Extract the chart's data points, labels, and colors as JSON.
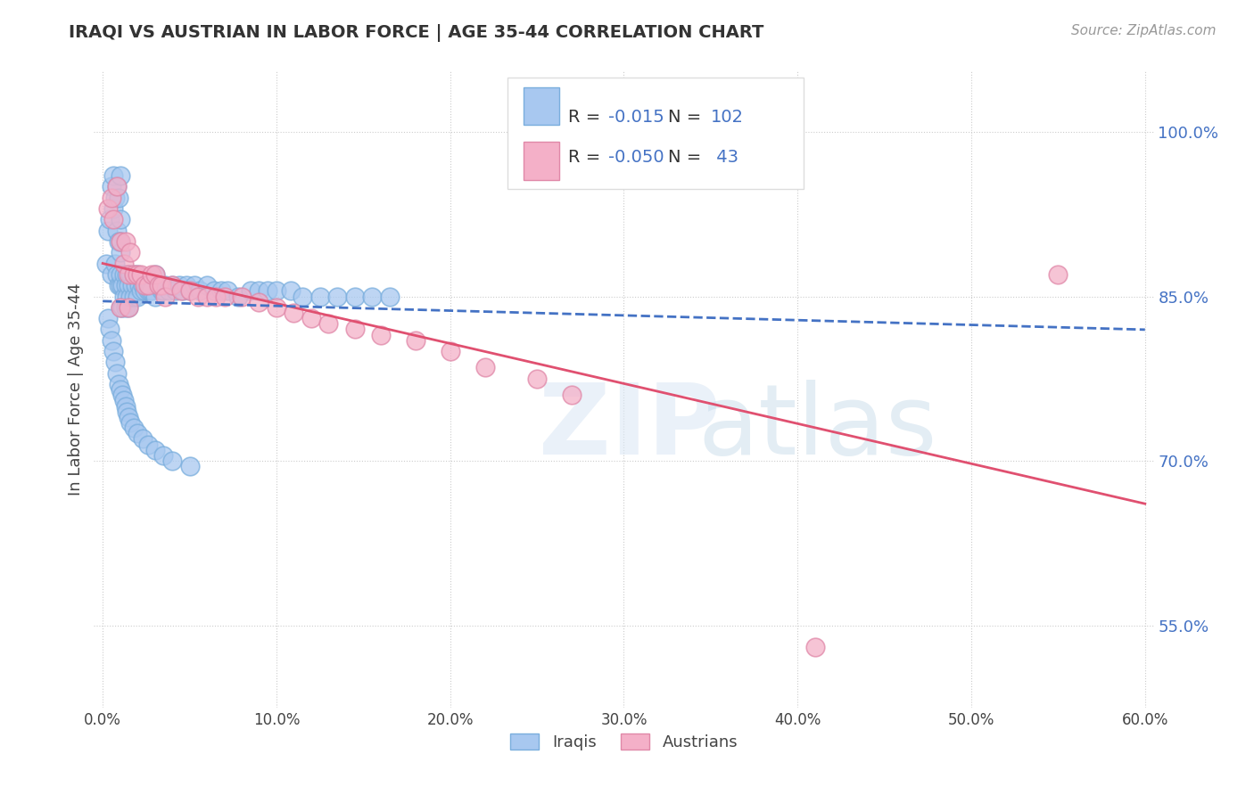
{
  "title": "IRAQI VS AUSTRIAN IN LABOR FORCE | AGE 35-44 CORRELATION CHART",
  "source": "Source: ZipAtlas.com",
  "ylabel": "In Labor Force | Age 35-44",
  "xlim": [
    -0.005,
    0.605
  ],
  "ylim": [
    0.475,
    1.055
  ],
  "xtick_labels": [
    "0.0%",
    "10.0%",
    "20.0%",
    "30.0%",
    "40.0%",
    "50.0%",
    "60.0%"
  ],
  "xtick_values": [
    0.0,
    0.1,
    0.2,
    0.3,
    0.4,
    0.5,
    0.6
  ],
  "ytick_labels": [
    "55.0%",
    "70.0%",
    "85.0%",
    "100.0%"
  ],
  "ytick_values": [
    0.55,
    0.7,
    0.85,
    1.0
  ],
  "iraqis_R": -0.015,
  "iraqis_N": 102,
  "austrians_R": -0.05,
  "austrians_N": 43,
  "iraqis_color": "#a8c8f0",
  "iraqis_edge_color": "#7aaedd",
  "austrians_color": "#f4b0c8",
  "austrians_edge_color": "#e088a8",
  "iraqis_line_color": "#4472c4",
  "austrians_line_color": "#e05070",
  "background_color": "#ffffff",
  "grid_color": "#cccccc",
  "iraqis_x": [
    0.002,
    0.003,
    0.004,
    0.005,
    0.005,
    0.006,
    0.006,
    0.007,
    0.007,
    0.008,
    0.008,
    0.008,
    0.009,
    0.009,
    0.009,
    0.01,
    0.01,
    0.01,
    0.01,
    0.01,
    0.01,
    0.01,
    0.011,
    0.011,
    0.012,
    0.012,
    0.013,
    0.013,
    0.014,
    0.014,
    0.015,
    0.015,
    0.016,
    0.016,
    0.017,
    0.018,
    0.018,
    0.019,
    0.02,
    0.02,
    0.021,
    0.022,
    0.023,
    0.024,
    0.025,
    0.026,
    0.027,
    0.028,
    0.03,
    0.03,
    0.032,
    0.033,
    0.034,
    0.035,
    0.036,
    0.038,
    0.04,
    0.042,
    0.044,
    0.046,
    0.048,
    0.05,
    0.053,
    0.056,
    0.06,
    0.064,
    0.068,
    0.072,
    0.078,
    0.085,
    0.09,
    0.095,
    0.1,
    0.108,
    0.115,
    0.125,
    0.135,
    0.145,
    0.155,
    0.165,
    0.003,
    0.004,
    0.005,
    0.006,
    0.007,
    0.008,
    0.009,
    0.01,
    0.011,
    0.012,
    0.013,
    0.014,
    0.015,
    0.016,
    0.018,
    0.02,
    0.023,
    0.026,
    0.03,
    0.035,
    0.04,
    0.05
  ],
  "iraqis_y": [
    0.88,
    0.91,
    0.92,
    0.95,
    0.87,
    0.93,
    0.96,
    0.94,
    0.88,
    0.95,
    0.91,
    0.87,
    0.94,
    0.9,
    0.86,
    0.96,
    0.92,
    0.89,
    0.86,
    0.84,
    0.87,
    0.9,
    0.86,
    0.84,
    0.87,
    0.85,
    0.86,
    0.84,
    0.87,
    0.85,
    0.86,
    0.84,
    0.87,
    0.85,
    0.86,
    0.87,
    0.85,
    0.86,
    0.87,
    0.85,
    0.86,
    0.855,
    0.86,
    0.855,
    0.86,
    0.855,
    0.855,
    0.855,
    0.87,
    0.85,
    0.86,
    0.86,
    0.855,
    0.855,
    0.86,
    0.855,
    0.86,
    0.855,
    0.86,
    0.855,
    0.86,
    0.855,
    0.86,
    0.855,
    0.86,
    0.855,
    0.855,
    0.855,
    0.85,
    0.855,
    0.855,
    0.855,
    0.855,
    0.855,
    0.85,
    0.85,
    0.85,
    0.85,
    0.85,
    0.85,
    0.83,
    0.82,
    0.81,
    0.8,
    0.79,
    0.78,
    0.77,
    0.765,
    0.76,
    0.755,
    0.75,
    0.745,
    0.74,
    0.735,
    0.73,
    0.725,
    0.72,
    0.715,
    0.71,
    0.705,
    0.7,
    0.695
  ],
  "austrians_x": [
    0.003,
    0.005,
    0.006,
    0.008,
    0.01,
    0.012,
    0.013,
    0.015,
    0.016,
    0.018,
    0.02,
    0.022,
    0.024,
    0.026,
    0.028,
    0.03,
    0.032,
    0.034,
    0.036,
    0.04,
    0.045,
    0.05,
    0.055,
    0.06,
    0.065,
    0.07,
    0.08,
    0.09,
    0.1,
    0.11,
    0.12,
    0.13,
    0.145,
    0.16,
    0.18,
    0.2,
    0.22,
    0.25,
    0.27,
    0.01,
    0.015,
    0.55,
    0.41
  ],
  "austrians_y": [
    0.93,
    0.94,
    0.92,
    0.95,
    0.9,
    0.88,
    0.9,
    0.87,
    0.89,
    0.87,
    0.87,
    0.87,
    0.86,
    0.86,
    0.87,
    0.87,
    0.86,
    0.86,
    0.85,
    0.86,
    0.855,
    0.855,
    0.85,
    0.85,
    0.85,
    0.85,
    0.85,
    0.845,
    0.84,
    0.835,
    0.83,
    0.825,
    0.82,
    0.815,
    0.81,
    0.8,
    0.785,
    0.775,
    0.76,
    0.84,
    0.84,
    0.87,
    0.53
  ],
  "legend_iraqis_label": "Iraqis",
  "legend_austrians_label": "Austrians"
}
